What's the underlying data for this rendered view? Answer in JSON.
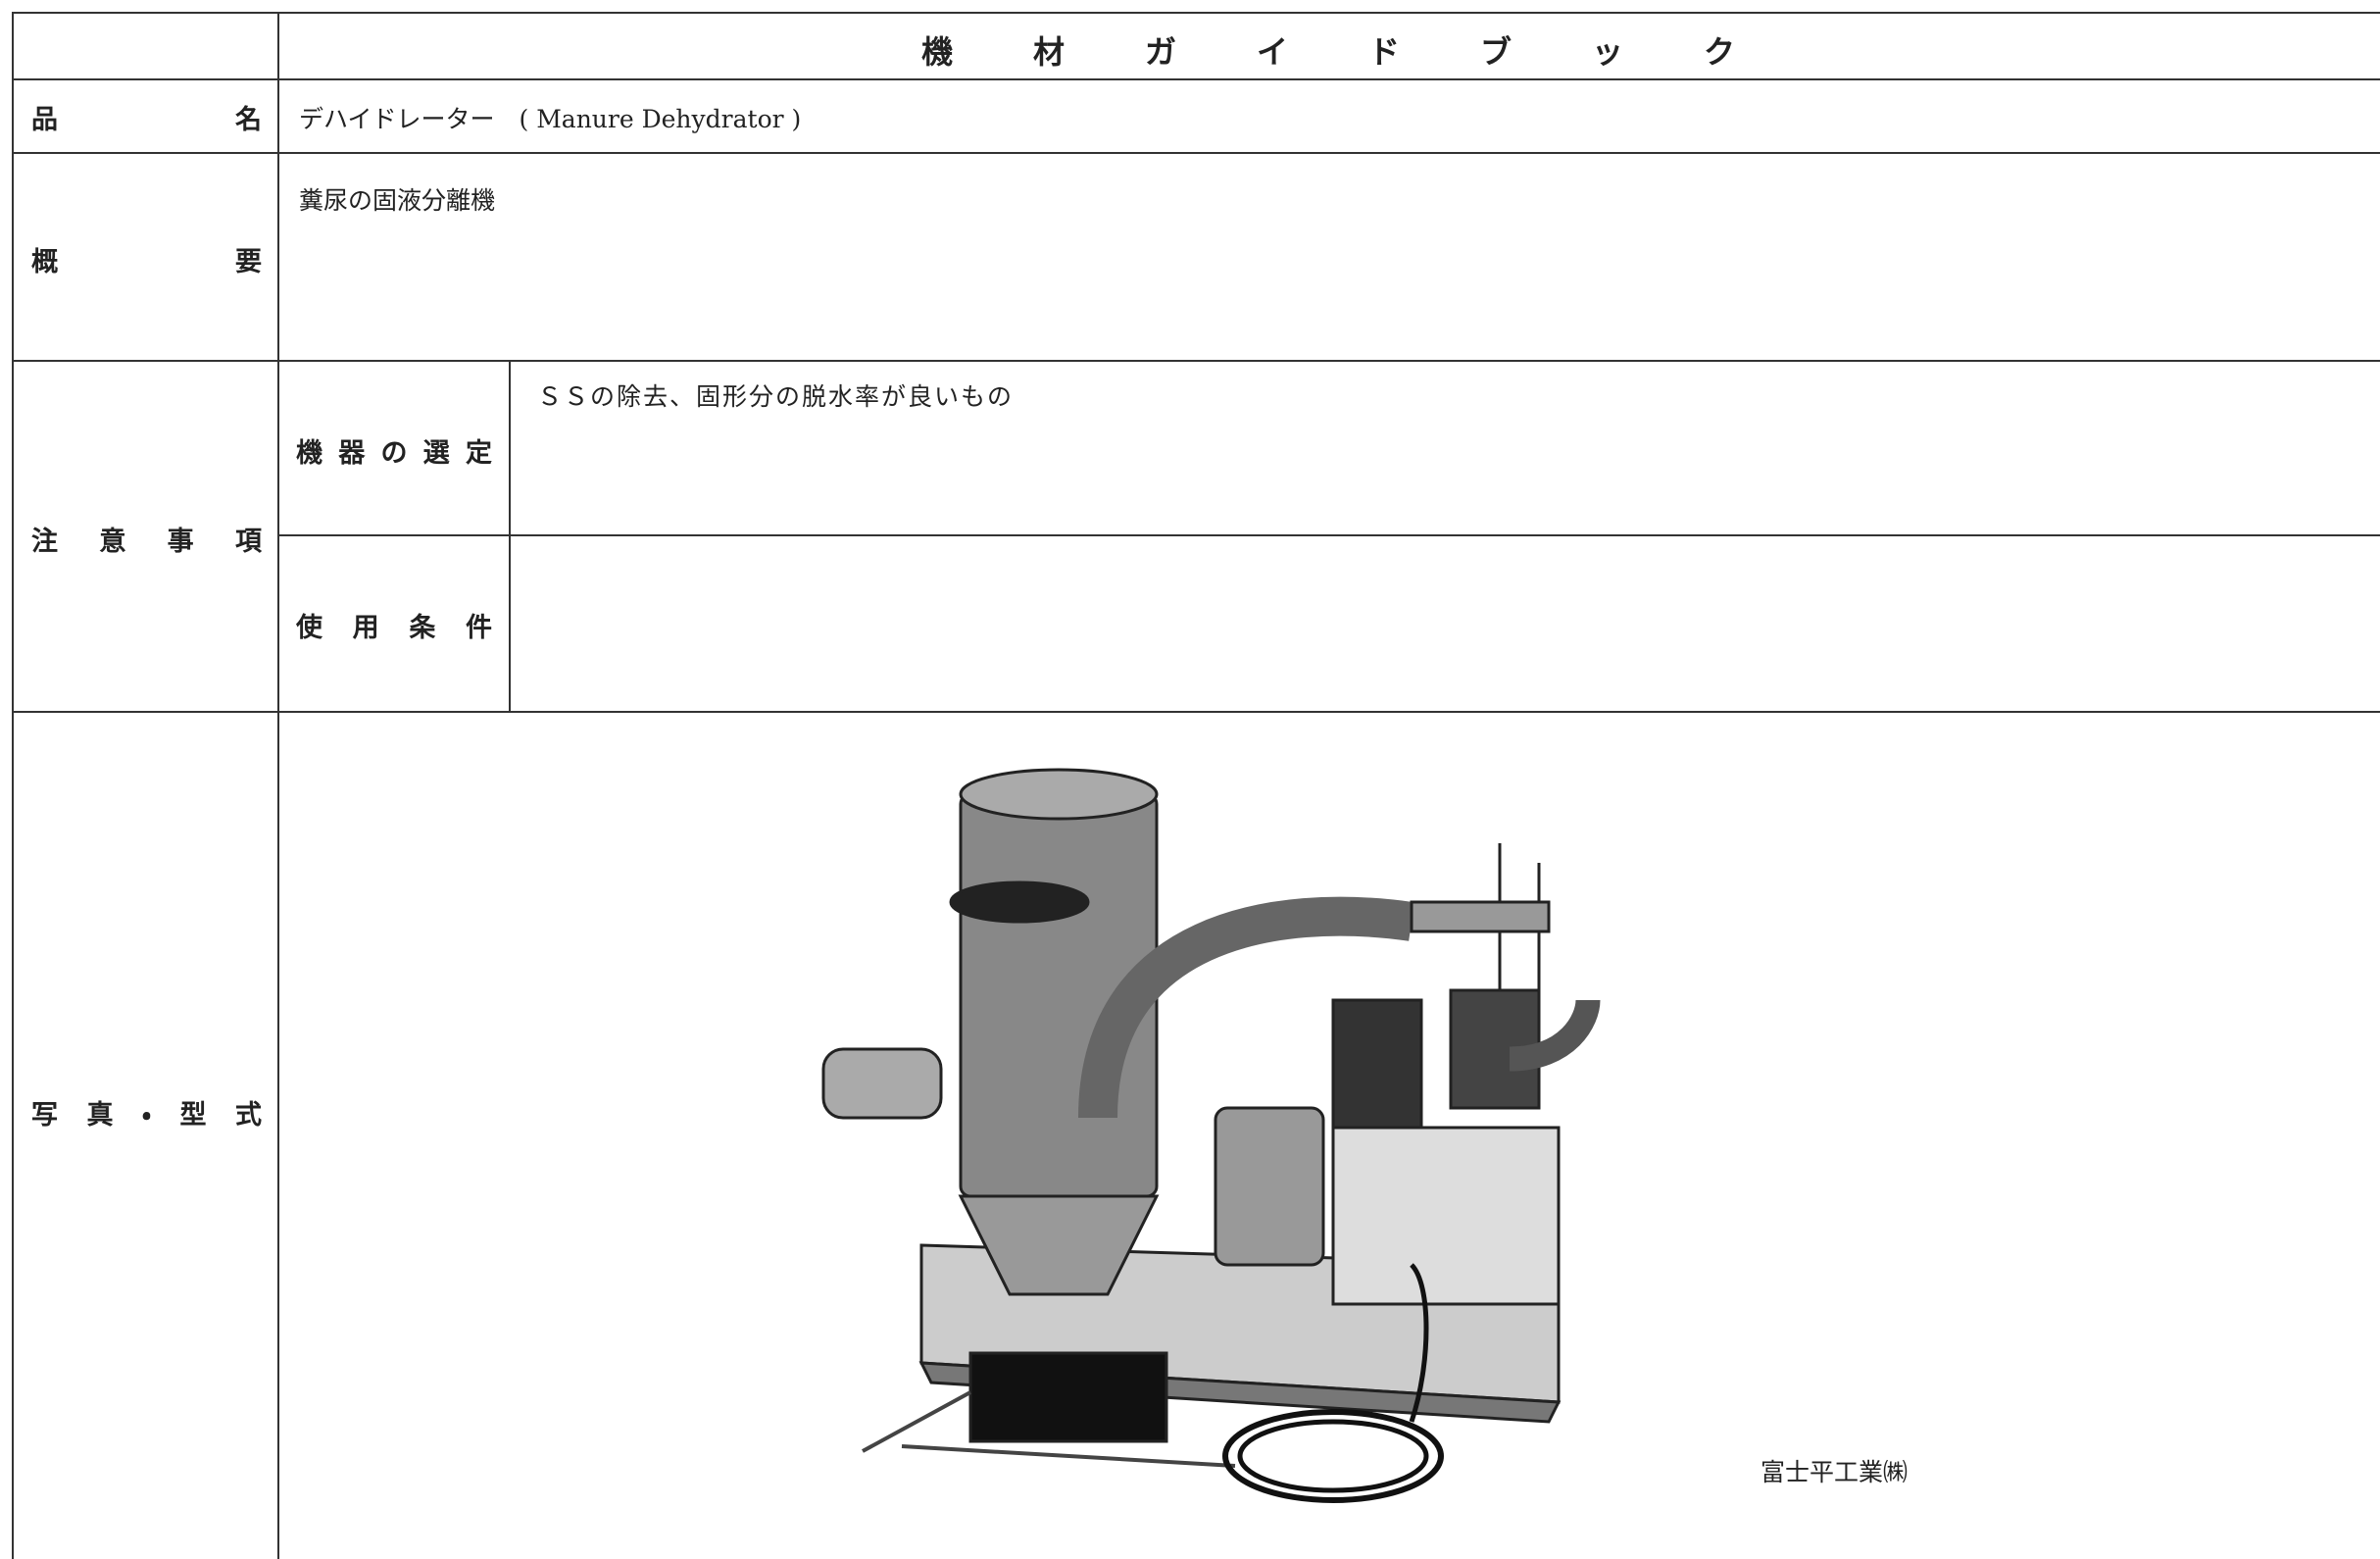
{
  "header": {
    "title": "機材ガイドブック"
  },
  "rows": {
    "name": {
      "label": "品名",
      "value": "デハイドレーター　( Manure Dehydrator )"
    },
    "summary": {
      "label": "概要",
      "value": "糞尿の固液分離機"
    },
    "notes": {
      "label": "注意事項",
      "selection": {
        "label": "機器の選定",
        "value": "ＳＳの除去、固形分の脱水率が良いもの"
      },
      "conditions": {
        "label": "使用条件"
      }
    },
    "photo": {
      "label": "写真・型式",
      "caption": "富士平工業㈱"
    }
  }
}
